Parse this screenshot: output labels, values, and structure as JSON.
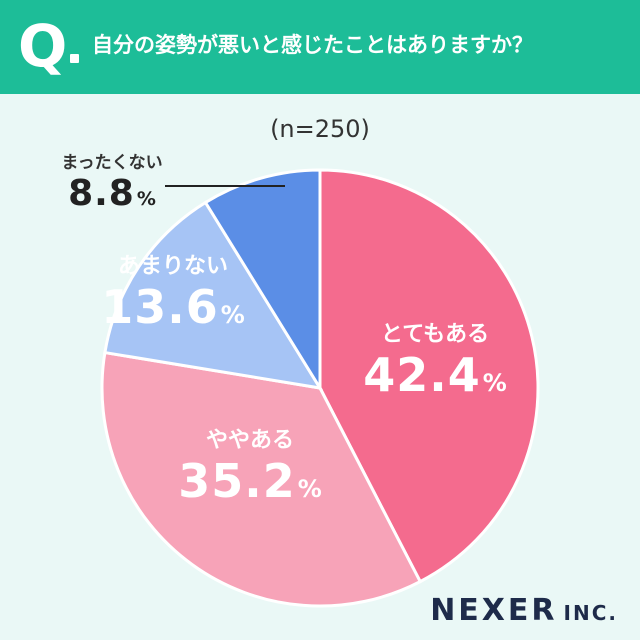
{
  "header": {
    "q_letter": "Q",
    "question": "自分の姿勢が悪いと感じたことはありますか？"
  },
  "chart_data": {
    "type": "pie",
    "note": "(n=250)",
    "unit": "%",
    "start": "top, clockwise",
    "slices": [
      {
        "label": "とてもある",
        "value": 42.4,
        "color": "#f46b8e"
      },
      {
        "label": "ややある",
        "value": 35.2,
        "color": "#f7a3b8"
      },
      {
        "label": "あまりない",
        "value": 13.6,
        "color": "#a6c4f5"
      },
      {
        "label": "まったくない",
        "value": 8.8,
        "color": "#5b8ee6"
      }
    ]
  },
  "labels": [
    {
      "cat": "とてもある",
      "val": "42.4",
      "pct": "%"
    },
    {
      "cat": "ややある",
      "val": "35.2",
      "pct": "%"
    },
    {
      "cat": "あまりない",
      "val": "13.6",
      "pct": "%"
    },
    {
      "cat": "まったくない",
      "val": "8.8",
      "pct": "%"
    }
  ],
  "logo": {
    "main": "NEXER",
    "sub": "INC."
  }
}
